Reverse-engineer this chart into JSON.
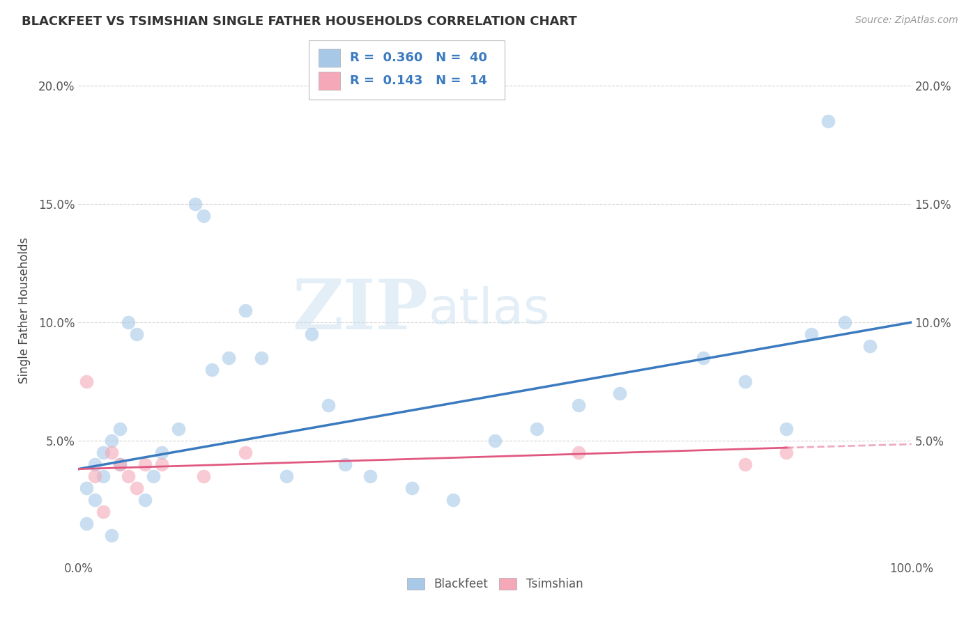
{
  "title": "BLACKFEET VS TSIMSHIAN SINGLE FATHER HOUSEHOLDS CORRELATION CHART",
  "source": "Source: ZipAtlas.com",
  "ylabel": "Single Father Households",
  "watermark_zip": "ZIP",
  "watermark_atlas": "atlas",
  "xlim": [
    0,
    100
  ],
  "ylim": [
    0,
    21
  ],
  "ytick_positions": [
    0,
    5,
    10,
    15,
    20
  ],
  "ytick_labels": [
    "",
    "5.0%",
    "10.0%",
    "15.0%",
    "20.0%"
  ],
  "xtick_positions": [
    0,
    25,
    50,
    75,
    100
  ],
  "xtick_labels": [
    "0.0%",
    "",
    "",
    "",
    "100.0%"
  ],
  "legend_r1": "R =  0.360",
  "legend_n1": "N =  40",
  "legend_r2": "R =  0.143",
  "legend_n2": "N =  14",
  "blue_scatter_color": "#a8c8e8",
  "pink_scatter_color": "#f4a8b8",
  "blue_line_color": "#3a7abf",
  "pink_line_color": "#e05880",
  "legend_text_color": "#3a7abf",
  "title_color": "#333333",
  "source_color": "#999999",
  "grid_color": "#cccccc",
  "background_color": "#ffffff",
  "blackfeet_x": [
    1,
    1,
    2,
    2,
    3,
    3,
    4,
    4,
    5,
    5,
    6,
    7,
    8,
    9,
    10,
    12,
    14,
    15,
    16,
    18,
    20,
    22,
    25,
    28,
    30,
    32,
    35,
    40,
    45,
    50,
    55,
    60,
    65,
    75,
    80,
    85,
    88,
    90,
    92,
    95
  ],
  "blackfeet_y": [
    1.5,
    3.0,
    2.5,
    4.0,
    3.5,
    4.5,
    1.0,
    5.0,
    5.5,
    4.0,
    10.0,
    9.5,
    2.5,
    3.5,
    4.5,
    5.5,
    15.0,
    14.5,
    8.0,
    8.5,
    10.5,
    8.5,
    3.5,
    9.5,
    6.5,
    4.0,
    3.5,
    3.0,
    2.5,
    5.0,
    5.5,
    6.5,
    7.0,
    8.5,
    7.5,
    5.5,
    9.5,
    18.5,
    10.0,
    9.0
  ],
  "tsimshian_x": [
    1,
    2,
    3,
    4,
    5,
    6,
    7,
    8,
    10,
    15,
    20,
    60,
    80,
    85
  ],
  "tsimshian_y": [
    7.5,
    3.5,
    2.0,
    4.5,
    4.0,
    3.5,
    3.0,
    4.0,
    4.0,
    3.5,
    4.5,
    4.5,
    4.0,
    4.5
  ],
  "blue_trend_x0": 0,
  "blue_trend_x1": 100,
  "blue_trend_y0": 3.8,
  "blue_trend_y1": 10.0,
  "pink_solid_x0": 0,
  "pink_solid_x1": 85,
  "pink_solid_y0": 3.8,
  "pink_solid_y1": 4.7,
  "pink_dash_x0": 85,
  "pink_dash_x1": 100,
  "pink_dash_y0": 4.7,
  "pink_dash_y1": 4.85
}
